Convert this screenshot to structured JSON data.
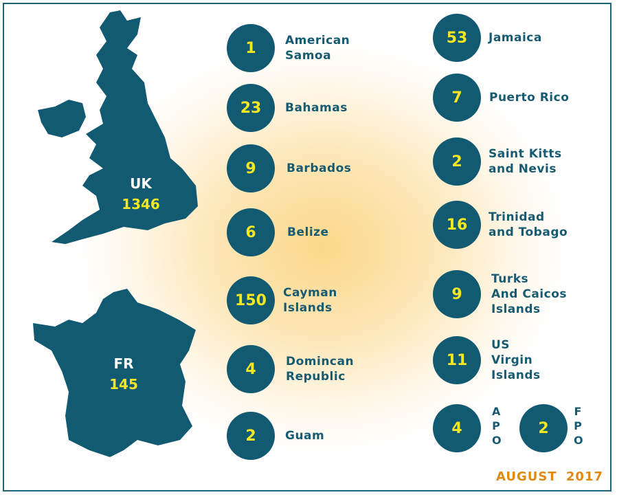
{
  "maps": [
    {
      "label": "UK",
      "value": 1346
    },
    {
      "label": "FR",
      "value": 145
    }
  ],
  "left": [
    {
      "value": 1,
      "label": "American\nSamoa"
    },
    {
      "value": 23,
      "label": "Bahamas"
    },
    {
      "value": 9,
      "label": "Barbados"
    },
    {
      "value": 6,
      "label": "Belize"
    },
    {
      "value": 150,
      "label": "Cayman\nIslands"
    },
    {
      "value": 4,
      "label": "Domincan\nRepublic"
    },
    {
      "value": 2,
      "label": "Guam"
    }
  ],
  "right": [
    {
      "value": 53,
      "label": "Jamaica"
    },
    {
      "value": 7,
      "label": "Puerto Rico"
    },
    {
      "value": 2,
      "label": "Saint Kitts\nand Nevis"
    },
    {
      "value": 16,
      "label": "Trinidad\nand Tobago"
    },
    {
      "value": 9,
      "label": "Turks\nAnd Caicos\nIslands"
    },
    {
      "value": 11,
      "label": "US\nVirgin\nIslands"
    }
  ],
  "bases": [
    {
      "value": 4,
      "label": "APO"
    },
    {
      "value": 2,
      "label": "FPO"
    }
  ],
  "footer": "AUGUST 2017"
}
